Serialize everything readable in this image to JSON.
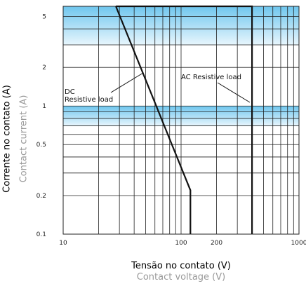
{
  "chart_data": {
    "type": "line",
    "x_scale": "log",
    "y_scale": "log",
    "xlim": [
      10,
      1000
    ],
    "ylim": [
      0.1,
      6
    ],
    "grid": true,
    "shaded_bands": [
      {
        "y_from": 3,
        "y_to": 6
      },
      {
        "y_from": 0.7,
        "y_to": 1
      }
    ],
    "x_tick_labels": [
      {
        "value": 10,
        "label": "10"
      },
      {
        "value": 100,
        "label": "100"
      },
      {
        "value": 200,
        "label": "200"
      },
      {
        "value": 1000,
        "label": "1000"
      }
    ],
    "y_tick_labels": [
      {
        "value": 5,
        "label": "5"
      },
      {
        "value": 2,
        "label": "2"
      },
      {
        "value": 1,
        "label": "1"
      },
      {
        "value": 0.5,
        "label": "0.5"
      },
      {
        "value": 0.2,
        "label": "0.2"
      },
      {
        "value": 0.1,
        "label": "0.1"
      }
    ],
    "xlabel": "Tensão no contato (V)",
    "xlabel_en": "Contact voltage (V)",
    "ylabel": "Corrente no contato (A)",
    "ylabel_en": "Contact current (A)",
    "series": [
      {
        "name": "DC Resistive load",
        "points": [
          [
            28,
            6
          ],
          [
            120,
            0.22
          ],
          [
            120,
            0.1
          ]
        ]
      },
      {
        "name": "AC Resistive load",
        "points": [
          [
            28,
            6
          ],
          [
            400,
            6
          ],
          [
            400,
            0.1
          ]
        ]
      }
    ],
    "annotations": [
      {
        "series": 0,
        "lines": [
          "DC",
          "Resistive load"
        ]
      },
      {
        "series": 1,
        "lines": [
          "AC Resistive load"
        ]
      }
    ]
  },
  "colors": {
    "band_top": "#6fc6ee",
    "band_bottom": "#e8f6fd",
    "grid": "#222222",
    "line": "#111111",
    "secondary_label": "#9a9a9a"
  }
}
